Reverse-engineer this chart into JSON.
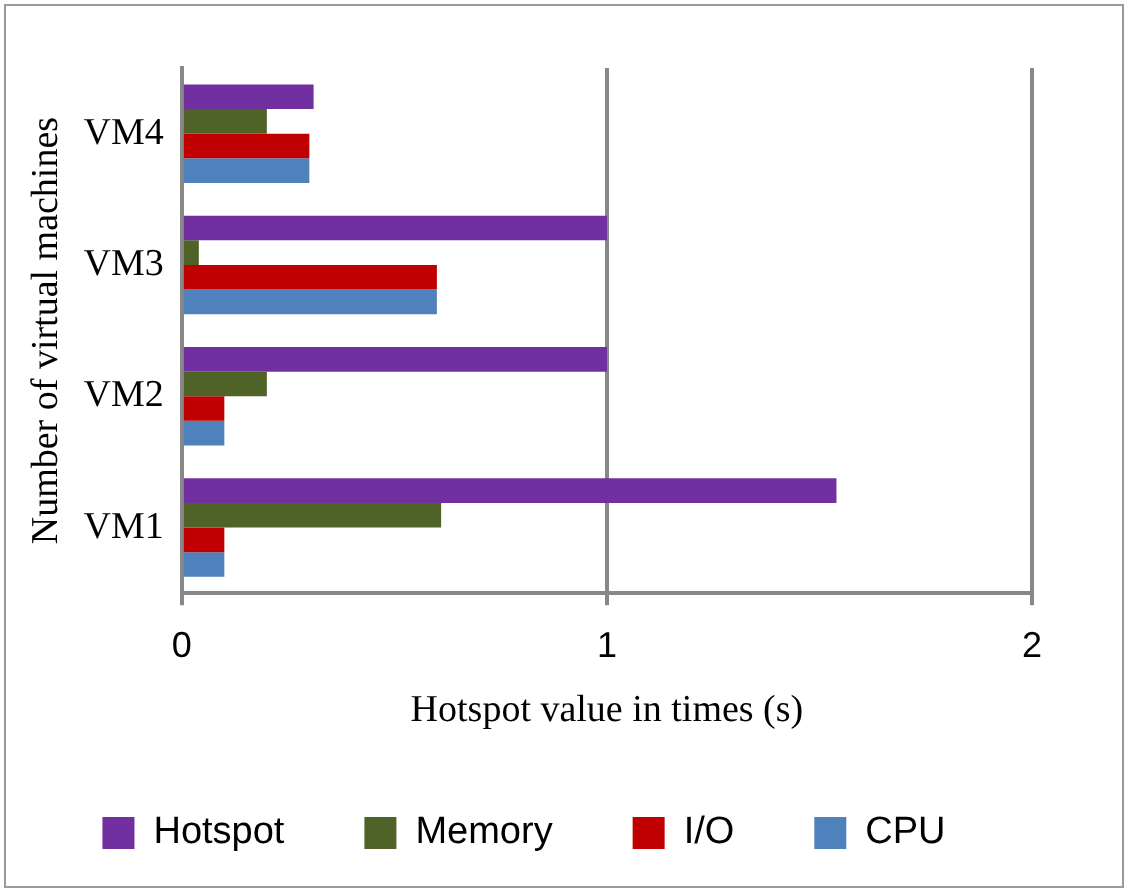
{
  "chart_data": {
    "type": "bar",
    "orientation": "horizontal",
    "xlabel": "Hotspot value in times (s)",
    "ylabel": "Number of virtual machines",
    "categories": [
      "VM4",
      "VM3",
      "VM2",
      "VM1"
    ],
    "series": [
      {
        "name": "Hotspot",
        "color": "#7030a0",
        "values": [
          0.31,
          1.0,
          1.0,
          1.54
        ]
      },
      {
        "name": "Memory",
        "color": "#4f6228",
        "values": [
          0.2,
          0.04,
          0.2,
          0.61
        ]
      },
      {
        "name": "I/O",
        "color": "#c00000",
        "values": [
          0.3,
          0.6,
          0.1,
          0.1
        ]
      },
      {
        "name": "CPU",
        "color": "#4f81bd",
        "values": [
          0.3,
          0.6,
          0.1,
          0.1
        ]
      }
    ],
    "xlim": [
      0,
      2
    ],
    "xticks": [
      0,
      1,
      2
    ],
    "grid": "x",
    "legend": "bottom"
  }
}
